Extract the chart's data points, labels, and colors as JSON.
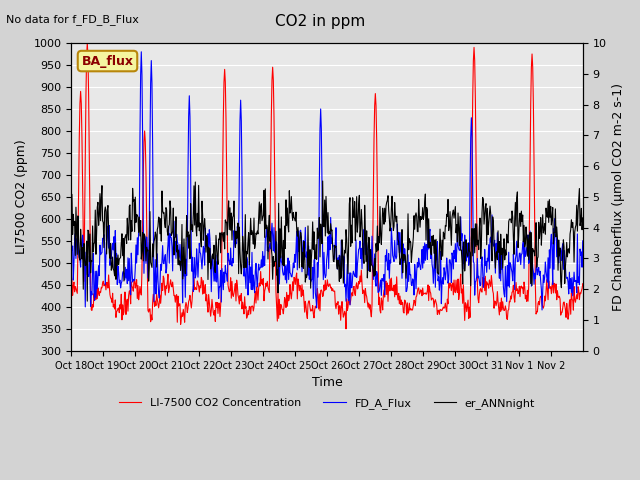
{
  "title": "CO2 in ppm",
  "top_left_text": "No data for f_FD_B_Flux",
  "legend_box_text": "BA_flux",
  "xlabel": "Time",
  "ylabel_left": "LI7500 CO2 (ppm)",
  "ylabel_right": "FD Chamberflux (μmol CO2 m-2 s-1)",
  "ylim_left": [
    300,
    1000
  ],
  "ylim_right": [
    0.0,
    10.0
  ],
  "yticks_left": [
    300,
    350,
    400,
    450,
    500,
    550,
    600,
    650,
    700,
    750,
    800,
    850,
    900,
    950,
    1000
  ],
  "yticks_right": [
    0.0,
    1.0,
    2.0,
    3.0,
    4.0,
    5.0,
    6.0,
    7.0,
    8.0,
    9.0,
    10.0
  ],
  "xtick_labels": [
    "Oct 18",
    "Oct 19",
    "Oct 20",
    "Oct 21",
    "Oct 22",
    "Oct 23",
    "Oct 24",
    "Oct 25",
    "Oct 26",
    "Oct 27",
    "Oct 28",
    "Oct 29",
    "Oct 30",
    "Oct 31",
    "Nov 1",
    "Nov 2"
  ],
  "bg_color": "#d3d3d3",
  "plot_bg_color": "#e8e8e8",
  "grid_color": "white",
  "legend_labels": [
    "LI-7500 CO2 Concentration",
    "FD_A_Flux",
    "er_ANNnight"
  ],
  "line_red_color": "red",
  "line_blue_color": "blue",
  "line_black_color": "black",
  "n_days": 16,
  "n_per_day": 48
}
